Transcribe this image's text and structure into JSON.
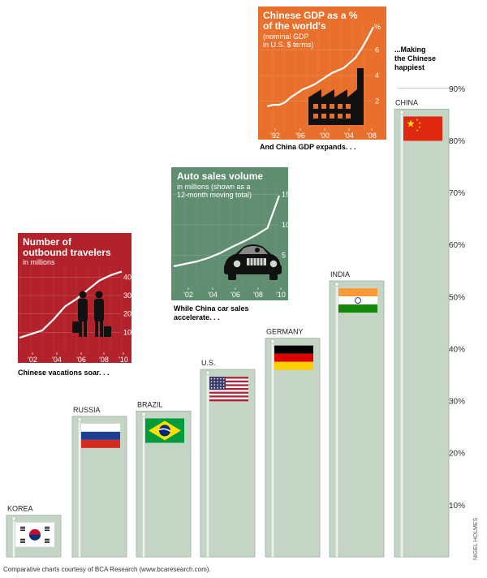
{
  "chart_data": {
    "main": {
      "type": "bar",
      "title": "Making the Chinese happiest",
      "categories": [
        "KOREA",
        "RUSSIA",
        "BRAZIL",
        "U.S.",
        "GERMANY",
        "INDIA",
        "CHINA"
      ],
      "values": [
        8,
        27,
        28,
        36,
        42,
        53,
        86
      ],
      "ylim": [
        0,
        92
      ],
      "yticks": [
        "10%",
        "20%",
        "30%",
        "40%",
        "50%",
        "60%",
        "70%",
        "80%",
        "90%"
      ],
      "annotation": "...Making the Chinese happiest"
    },
    "insets": [
      {
        "type": "line",
        "title_lines": [
          "Number of",
          "outbound travelers"
        ],
        "subtitle_lines": [
          "in millions"
        ],
        "x": [
          2001,
          2002,
          2003,
          2004,
          2005,
          2006,
          2007,
          2008,
          2009,
          2010
        ],
        "values": [
          7,
          9,
          11,
          17,
          24,
          28,
          33,
          38,
          41,
          43
        ],
        "xlim": [
          2001,
          2010
        ],
        "ylim": [
          0,
          45
        ],
        "xticks": [
          "'02",
          "'04",
          "'06",
          "'08",
          "'10"
        ],
        "yticks": [
          "10",
          "20",
          "30",
          "40"
        ],
        "caption": "Chinese vacations soar. . ."
      },
      {
        "type": "line",
        "title_lines": [
          "Auto sales volume"
        ],
        "subtitle_lines": [
          "in millions (shown as a",
          "12-month moving total)"
        ],
        "x": [
          2001,
          2002,
          2003,
          2004,
          2005,
          2006,
          2007,
          2008,
          2009,
          2010
        ],
        "values": [
          3.2,
          3.6,
          4.0,
          4.6,
          5.4,
          6.4,
          7.3,
          8.3,
          9.5,
          14.8
        ],
        "xlim": [
          2001,
          2010
        ],
        "ylim": [
          0,
          16
        ],
        "xticks": [
          "'02",
          "'04",
          "'06",
          "'08",
          "'10"
        ],
        "yticks": [
          "5",
          "10",
          "15"
        ],
        "caption": "While China car sales accelerate. . ."
      },
      {
        "type": "line",
        "title_lines": [
          "Chinese GDP as a %",
          "of the world's"
        ],
        "subtitle_lines": [
          "(nominal GDP",
          "in U.S. $ terms)"
        ],
        "x": [
          1991,
          1992,
          1993,
          1994,
          1995,
          1996,
          1997,
          1998,
          1999,
          2000,
          2001,
          2002,
          2003,
          2004,
          2005,
          2006,
          2007,
          2008,
          2009
        ],
        "values": [
          1.6,
          1.7,
          1.7,
          1.9,
          2.3,
          2.6,
          2.9,
          3.1,
          3.3,
          3.6,
          3.9,
          4.2,
          4.4,
          4.6,
          5.0,
          5.4,
          6.1,
          6.9,
          7.8
        ],
        "xlim": [
          1990,
          2009
        ],
        "ylim": [
          0,
          8
        ],
        "xticks": [
          "'92",
          "'96",
          "'00",
          "'04",
          "'08"
        ],
        "yticks": [
          "2",
          "4",
          "6"
        ],
        "unit_label": "%",
        "caption": "And China GDP expands. . ."
      }
    ]
  },
  "colors": {
    "bar": "#c5d5c5",
    "bar_edge": "#a9bca9",
    "inset_red": "#b3222b",
    "inset_green": "#5f8e71",
    "inset_orange": "#e9702c"
  },
  "captions": {
    "gdp_line1": "And China GDP expands. . .",
    "car_line1": "While China car sales",
    "car_line2": "accelerate. . .",
    "travel_line1": "Chinese vacations soar. . ."
  },
  "annotation_lines": [
    "...Making",
    "the Chinese",
    "happiest"
  ],
  "credit": "Comparative charts courtesy of BCA Research (www.bcaresearch.com).",
  "signature": "NIGEL HOLMES",
  "icons": [
    "travelers-icon",
    "car-icon",
    "factory-icon",
    "flag-icons"
  ]
}
